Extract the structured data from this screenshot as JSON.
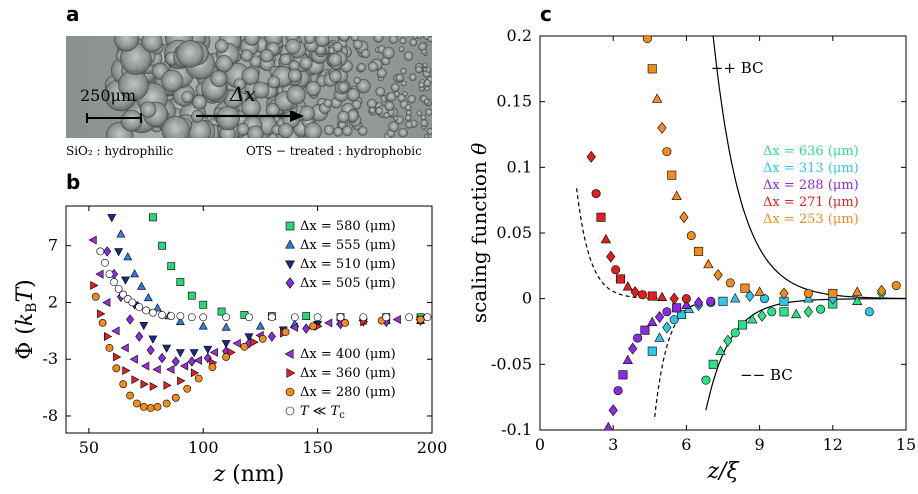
{
  "panel_a": {
    "letter": "a",
    "scale_label": "250μm",
    "arrow_label": "Δx",
    "left_caption": "SiO₂ : hydrophilic",
    "right_caption": "OTS − treated : hydrophobic"
  },
  "chart_data": [
    {
      "panel": "b",
      "type": "scatter",
      "title": "",
      "xlabel": "z (nm)",
      "ylabel": "Φ (k_B T)",
      "xlim": [
        40,
        200
      ],
      "ylim": [
        -9.5,
        10.5
      ],
      "xticks": [
        50,
        100,
        150,
        200
      ],
      "yticks": [
        7,
        2,
        -3,
        -8
      ],
      "legend_top": "top-right",
      "legend_bottom": "bottom-right",
      "series": [
        {
          "name": "Δx = 580 (μm)",
          "marker": "square",
          "color": "#2ed47a",
          "x": [
            78,
            82,
            86,
            90,
            95,
            100,
            108,
            118,
            130,
            145,
            160,
            180,
            195
          ],
          "y": [
            9.5,
            7.0,
            5.2,
            3.8,
            2.6,
            1.8,
            1.2,
            0.9,
            0.8,
            0.8,
            0.7,
            0.7,
            0.7
          ]
        },
        {
          "name": "Δx = 555 (μm)",
          "marker": "triangle-up",
          "color": "#2f7ddc",
          "x": [
            64,
            67,
            70,
            73,
            76,
            80,
            85,
            90,
            100,
            110,
            125,
            140,
            160,
            180,
            195
          ],
          "y": [
            8.0,
            6.0,
            4.5,
            3.4,
            2.4,
            1.5,
            0.8,
            0.3,
            -0.1,
            -0.2,
            -0.1,
            0.1,
            0.3,
            0.4,
            0.4
          ]
        },
        {
          "name": "Δx = 510 (μm)",
          "marker": "triangle-down",
          "color": "#1a2a8c",
          "x": [
            60,
            63,
            66,
            70,
            74,
            78,
            84,
            90,
            96,
            102,
            110,
            120,
            135,
            150,
            170,
            195
          ],
          "y": [
            9.5,
            6.5,
            4.0,
            1.8,
            0.0,
            -1.2,
            -2.0,
            -2.4,
            -2.4,
            -2.1,
            -1.6,
            -1.0,
            -0.4,
            0.1,
            0.3,
            0.4
          ]
        },
        {
          "name": "Δx = 505 (μm)",
          "marker": "diamond",
          "color": "#8a2be2",
          "x": [
            58,
            61,
            64,
            68,
            72,
            77,
            82,
            88,
            95,
            102,
            110,
            120,
            130,
            145,
            160,
            180,
            195
          ],
          "y": [
            6.5,
            4.5,
            2.5,
            0.5,
            -1.0,
            -2.2,
            -2.9,
            -3.2,
            -3.2,
            -2.9,
            -2.3,
            -1.6,
            -1.0,
            -0.3,
            0.1,
            0.3,
            0.4
          ]
        },
        {
          "name": "Δx = 400 (μm)",
          "marker": "triangle-left",
          "color": "#9b30d9",
          "x": [
            52,
            55,
            58,
            62,
            66,
            70,
            75,
            80,
            86,
            92,
            98,
            105,
            115,
            125,
            140,
            155,
            170,
            185,
            195
          ],
          "y": [
            7.5,
            4.5,
            2.0,
            -0.5,
            -2.0,
            -3.0,
            -3.6,
            -3.9,
            -3.9,
            -3.6,
            -3.1,
            -2.4,
            -1.6,
            -0.9,
            -0.2,
            0.2,
            0.4,
            0.5,
            0.5
          ]
        },
        {
          "name": "Δx = 360 (μm)",
          "marker": "triangle-right",
          "color": "#e02020",
          "x": [
            52,
            55,
            58,
            62,
            66,
            70,
            74,
            78,
            84,
            90,
            96,
            104,
            112,
            122,
            135,
            150,
            170,
            195
          ],
          "y": [
            3.5,
            1.0,
            -1.0,
            -2.8,
            -4.0,
            -4.8,
            -5.2,
            -5.4,
            -5.3,
            -4.9,
            -4.2,
            -3.3,
            -2.4,
            -1.5,
            -0.7,
            -0.1,
            0.3,
            0.5
          ]
        },
        {
          "name": "Δx = 280 (μm)",
          "marker": "circle",
          "color": "#f08c1c",
          "x": [
            53,
            56,
            59,
            62,
            65,
            68,
            71,
            74,
            77,
            80,
            84,
            88,
            93,
            98,
            104,
            110,
            118,
            126,
            136,
            148,
            162,
            178,
            195
          ],
          "y": [
            2.5,
            0.2,
            -2.0,
            -3.8,
            -5.2,
            -6.2,
            -6.9,
            -7.2,
            -7.3,
            -7.2,
            -6.9,
            -6.4,
            -5.6,
            -4.7,
            -3.7,
            -2.8,
            -1.9,
            -1.2,
            -0.6,
            -0.1,
            0.2,
            0.4,
            0.5
          ]
        },
        {
          "name": "T ≪ T_c",
          "marker": "open-circle",
          "color": "#ffffff",
          "x": [
            55,
            57,
            59,
            61,
            63,
            65,
            67,
            69,
            72,
            75,
            78,
            82,
            86,
            90,
            95,
            100,
            110,
            120,
            130,
            140,
            150,
            160,
            170,
            180,
            190,
            198
          ],
          "y": [
            6.5,
            5.5,
            4.5,
            3.8,
            3.2,
            2.7,
            2.3,
            2.0,
            1.6,
            1.3,
            1.1,
            0.9,
            0.8,
            0.8,
            0.7,
            0.7,
            0.7,
            0.7,
            0.7,
            0.7,
            0.7,
            0.7,
            0.7,
            0.7,
            0.7,
            0.7
          ]
        }
      ]
    },
    {
      "panel": "c",
      "type": "scatter",
      "title": "",
      "xlabel": "z/ξ",
      "ylabel": "scaling function θ",
      "xlim": [
        0,
        15
      ],
      "ylim": [
        -0.1,
        0.2
      ],
      "xticks": [
        0,
        3,
        6,
        9,
        12,
        15
      ],
      "yticks": [
        -0.1,
        -0.05,
        0,
        0.05,
        0.1,
        0.15,
        0.2
      ],
      "legend": "right",
      "annotations": [
        {
          "text": "−+ BC",
          "x": 7.0,
          "y": 0.172
        },
        {
          "text": "−− BC",
          "x": 8.2,
          "y": -0.062
        }
      ],
      "series": [
        {
          "name": "Δx = 636 (μm)",
          "color": "#2ee08a",
          "x": [
            6.8,
            7.1,
            7.4,
            7.7,
            8.0,
            8.3,
            8.7,
            9.1,
            9.5,
            10.0,
            10.5,
            11.0,
            11.5,
            12.0,
            13.0,
            14.0
          ],
          "y": [
            -0.062,
            -0.05,
            -0.04,
            -0.032,
            -0.026,
            -0.02,
            -0.016,
            -0.013,
            -0.01,
            -0.01,
            -0.012,
            -0.01,
            -0.008,
            -0.004,
            -0.002,
            0.004
          ]
        },
        {
          "name": "Δx = 313 (μm)",
          "color": "#2ec8e6",
          "x": [
            4.6,
            4.9,
            5.2,
            5.5,
            5.8,
            6.1,
            6.5,
            7.0,
            7.5,
            8.0,
            8.6,
            9.2,
            10.0,
            11.0,
            12.0,
            13.5
          ],
          "y": [
            -0.04,
            -0.03,
            -0.022,
            -0.016,
            -0.012,
            -0.008,
            -0.005,
            -0.003,
            -0.002,
            0.0,
            0.002,
            0.0,
            -0.002,
            0.0,
            0.0,
            -0.01
          ]
        },
        {
          "name": "Δx = 288 (μm)",
          "color": "#8a2be2",
          "x": [
            2.8,
            3.0,
            3.2,
            3.4,
            3.6,
            3.8,
            4.0,
            4.3,
            4.6,
            4.9,
            5.2,
            5.6,
            6.0,
            6.5,
            7.0
          ],
          "y": [
            -0.098,
            -0.085,
            -0.07,
            -0.058,
            -0.047,
            -0.038,
            -0.03,
            -0.024,
            -0.018,
            -0.014,
            -0.01,
            -0.007,
            -0.005,
            -0.003,
            -0.002
          ]
        },
        {
          "name": "Δx = 271 (μm)",
          "color": "#e02020",
          "x": [
            2.1,
            2.3,
            2.5,
            2.7,
            2.9,
            3.1,
            3.3,
            3.6,
            3.9,
            4.2,
            4.6,
            5.0,
            5.5,
            6.0
          ],
          "y": [
            0.108,
            0.08,
            0.062,
            0.045,
            0.032,
            0.022,
            0.015,
            0.009,
            0.005,
            0.003,
            0.002,
            0.001,
            0.0,
            0.0
          ]
        },
        {
          "name": "Δx = 253 (μm)",
          "color": "#f08c1c",
          "x": [
            4.4,
            4.6,
            4.8,
            5.0,
            5.2,
            5.4,
            5.6,
            5.9,
            6.2,
            6.5,
            6.9,
            7.3,
            7.8,
            8.4,
            9.0,
            10.0,
            11.0,
            12.0,
            13.0,
            14.0,
            14.6
          ],
          "y": [
            0.198,
            0.175,
            0.152,
            0.13,
            0.112,
            0.094,
            0.078,
            0.062,
            0.048,
            0.036,
            0.026,
            0.018,
            0.012,
            0.008,
            0.005,
            0.004,
            0.004,
            0.004,
            0.005,
            0.006,
            0.01
          ]
        }
      ]
    }
  ]
}
